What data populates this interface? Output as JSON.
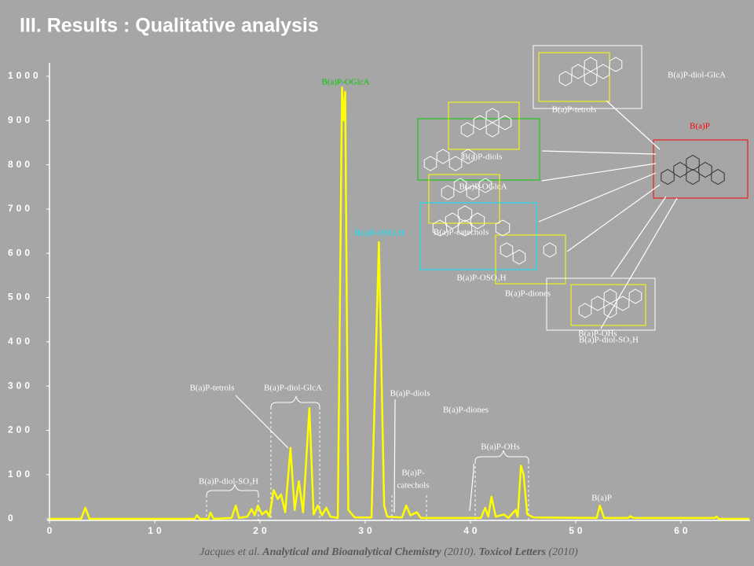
{
  "header": {
    "title": "III. Results : Qualitative analysis"
  },
  "chart_data": {
    "type": "line",
    "color": "#ffff00",
    "xlim": [
      0,
      66.5
    ],
    "ylim": [
      0,
      1000
    ],
    "xticks": [
      0,
      10,
      20,
      30,
      40,
      50,
      60
    ],
    "yticks": [
      0,
      100,
      200,
      300,
      400,
      500,
      600,
      700,
      800,
      900,
      1000
    ],
    "x": [
      0,
      3.0,
      3.4,
      3.8,
      13.8,
      14.0,
      14.3,
      15.1,
      15.3,
      15.6,
      17.3,
      17.7,
      18.0,
      18.8,
      19.2,
      19.5,
      19.8,
      20.2,
      20.6,
      20.9,
      21.3,
      21.7,
      22.0,
      22.4,
      22.9,
      23.3,
      23.7,
      24.1,
      24.7,
      25.1,
      25.5,
      25.9,
      26.3,
      26.7,
      27.4,
      27.8,
      27.95,
      28.1,
      28.4,
      29.0,
      30.6,
      31.3,
      31.8,
      32.1,
      33.5,
      33.9,
      34.3,
      34.9,
      35.3,
      41.0,
      41.4,
      41.7,
      42.0,
      42.4,
      43.2,
      43.6,
      44.3,
      44.5,
      44.8,
      45.05,
      45.4,
      46.0,
      52.0,
      52.3,
      52.7,
      55.0,
      55.2,
      55.5,
      63.2,
      63.4,
      63.6,
      66.5
    ],
    "values": [
      0,
      0,
      25,
      0,
      0,
      8,
      0,
      0,
      14,
      0,
      2,
      30,
      2,
      5,
      22,
      8,
      30,
      10,
      18,
      5,
      65,
      45,
      55,
      15,
      160,
      20,
      85,
      15,
      250,
      10,
      30,
      8,
      25,
      5,
      2,
      975,
      900,
      965,
      20,
      3,
      3,
      625,
      30,
      5,
      3,
      30,
      8,
      15,
      2,
      2,
      25,
      5,
      50,
      5,
      10,
      2,
      20,
      5,
      120,
      100,
      10,
      3,
      2,
      30,
      2,
      2,
      6,
      2,
      2,
      5,
      0,
      0
    ],
    "annotations": [
      {
        "text": "B(a)P-OGlcA",
        "color": "#00cc00"
      },
      {
        "text": "B(a)P-OSO₃H",
        "color": "#00e5ff"
      },
      {
        "text": "B(a)P-tetrols",
        "color": "#ffffff"
      },
      {
        "text": "B(a)P-diol-GlcA",
        "color": "#ffffff"
      },
      {
        "text": "B(a)P-diols",
        "color": "#ffffff"
      },
      {
        "text": "B(a)P-diones",
        "color": "#ffffff"
      },
      {
        "text": "B(a)P-OHs",
        "color": "#ffffff"
      },
      {
        "text": "B(a)P-",
        "color": "#ffffff"
      },
      {
        "text": "catechols",
        "color": "#ffffff"
      },
      {
        "text": "B(a)P-diol-SO₃H",
        "color": "#ffffff"
      },
      {
        "text": "B(a)P",
        "color": "#ffffff"
      },
      {
        "text": "B(a)P-diol-GlcA",
        "color": "#ffffff"
      },
      {
        "text": "B(a)P",
        "color": "#ff0000"
      },
      {
        "text": "B(a)P-tetrols",
        "color": "#ffffff"
      },
      {
        "text": "B(a)P-diols",
        "color": "#ffffff"
      },
      {
        "text": "B(a)P-OGlcA",
        "color": "#ffffff"
      },
      {
        "text": "B(a)P-catechols",
        "color": "#ffffff"
      },
      {
        "text": "B(a)P-OSO₃H",
        "color": "#ffffff"
      },
      {
        "text": "B(a)P-diones",
        "color": "#ffffff"
      },
      {
        "text": "B(a)P-OHs",
        "color": "#ffffff"
      },
      {
        "text": "B(a)P-diol-SO₃H",
        "color": "#ffffff"
      }
    ]
  },
  "citation": {
    "parts": [
      "Jacques et al. ",
      "Analytical and Bioanalytical Chemistry",
      " (2010). ",
      "Toxicol Letters",
      " (2010)"
    ]
  }
}
